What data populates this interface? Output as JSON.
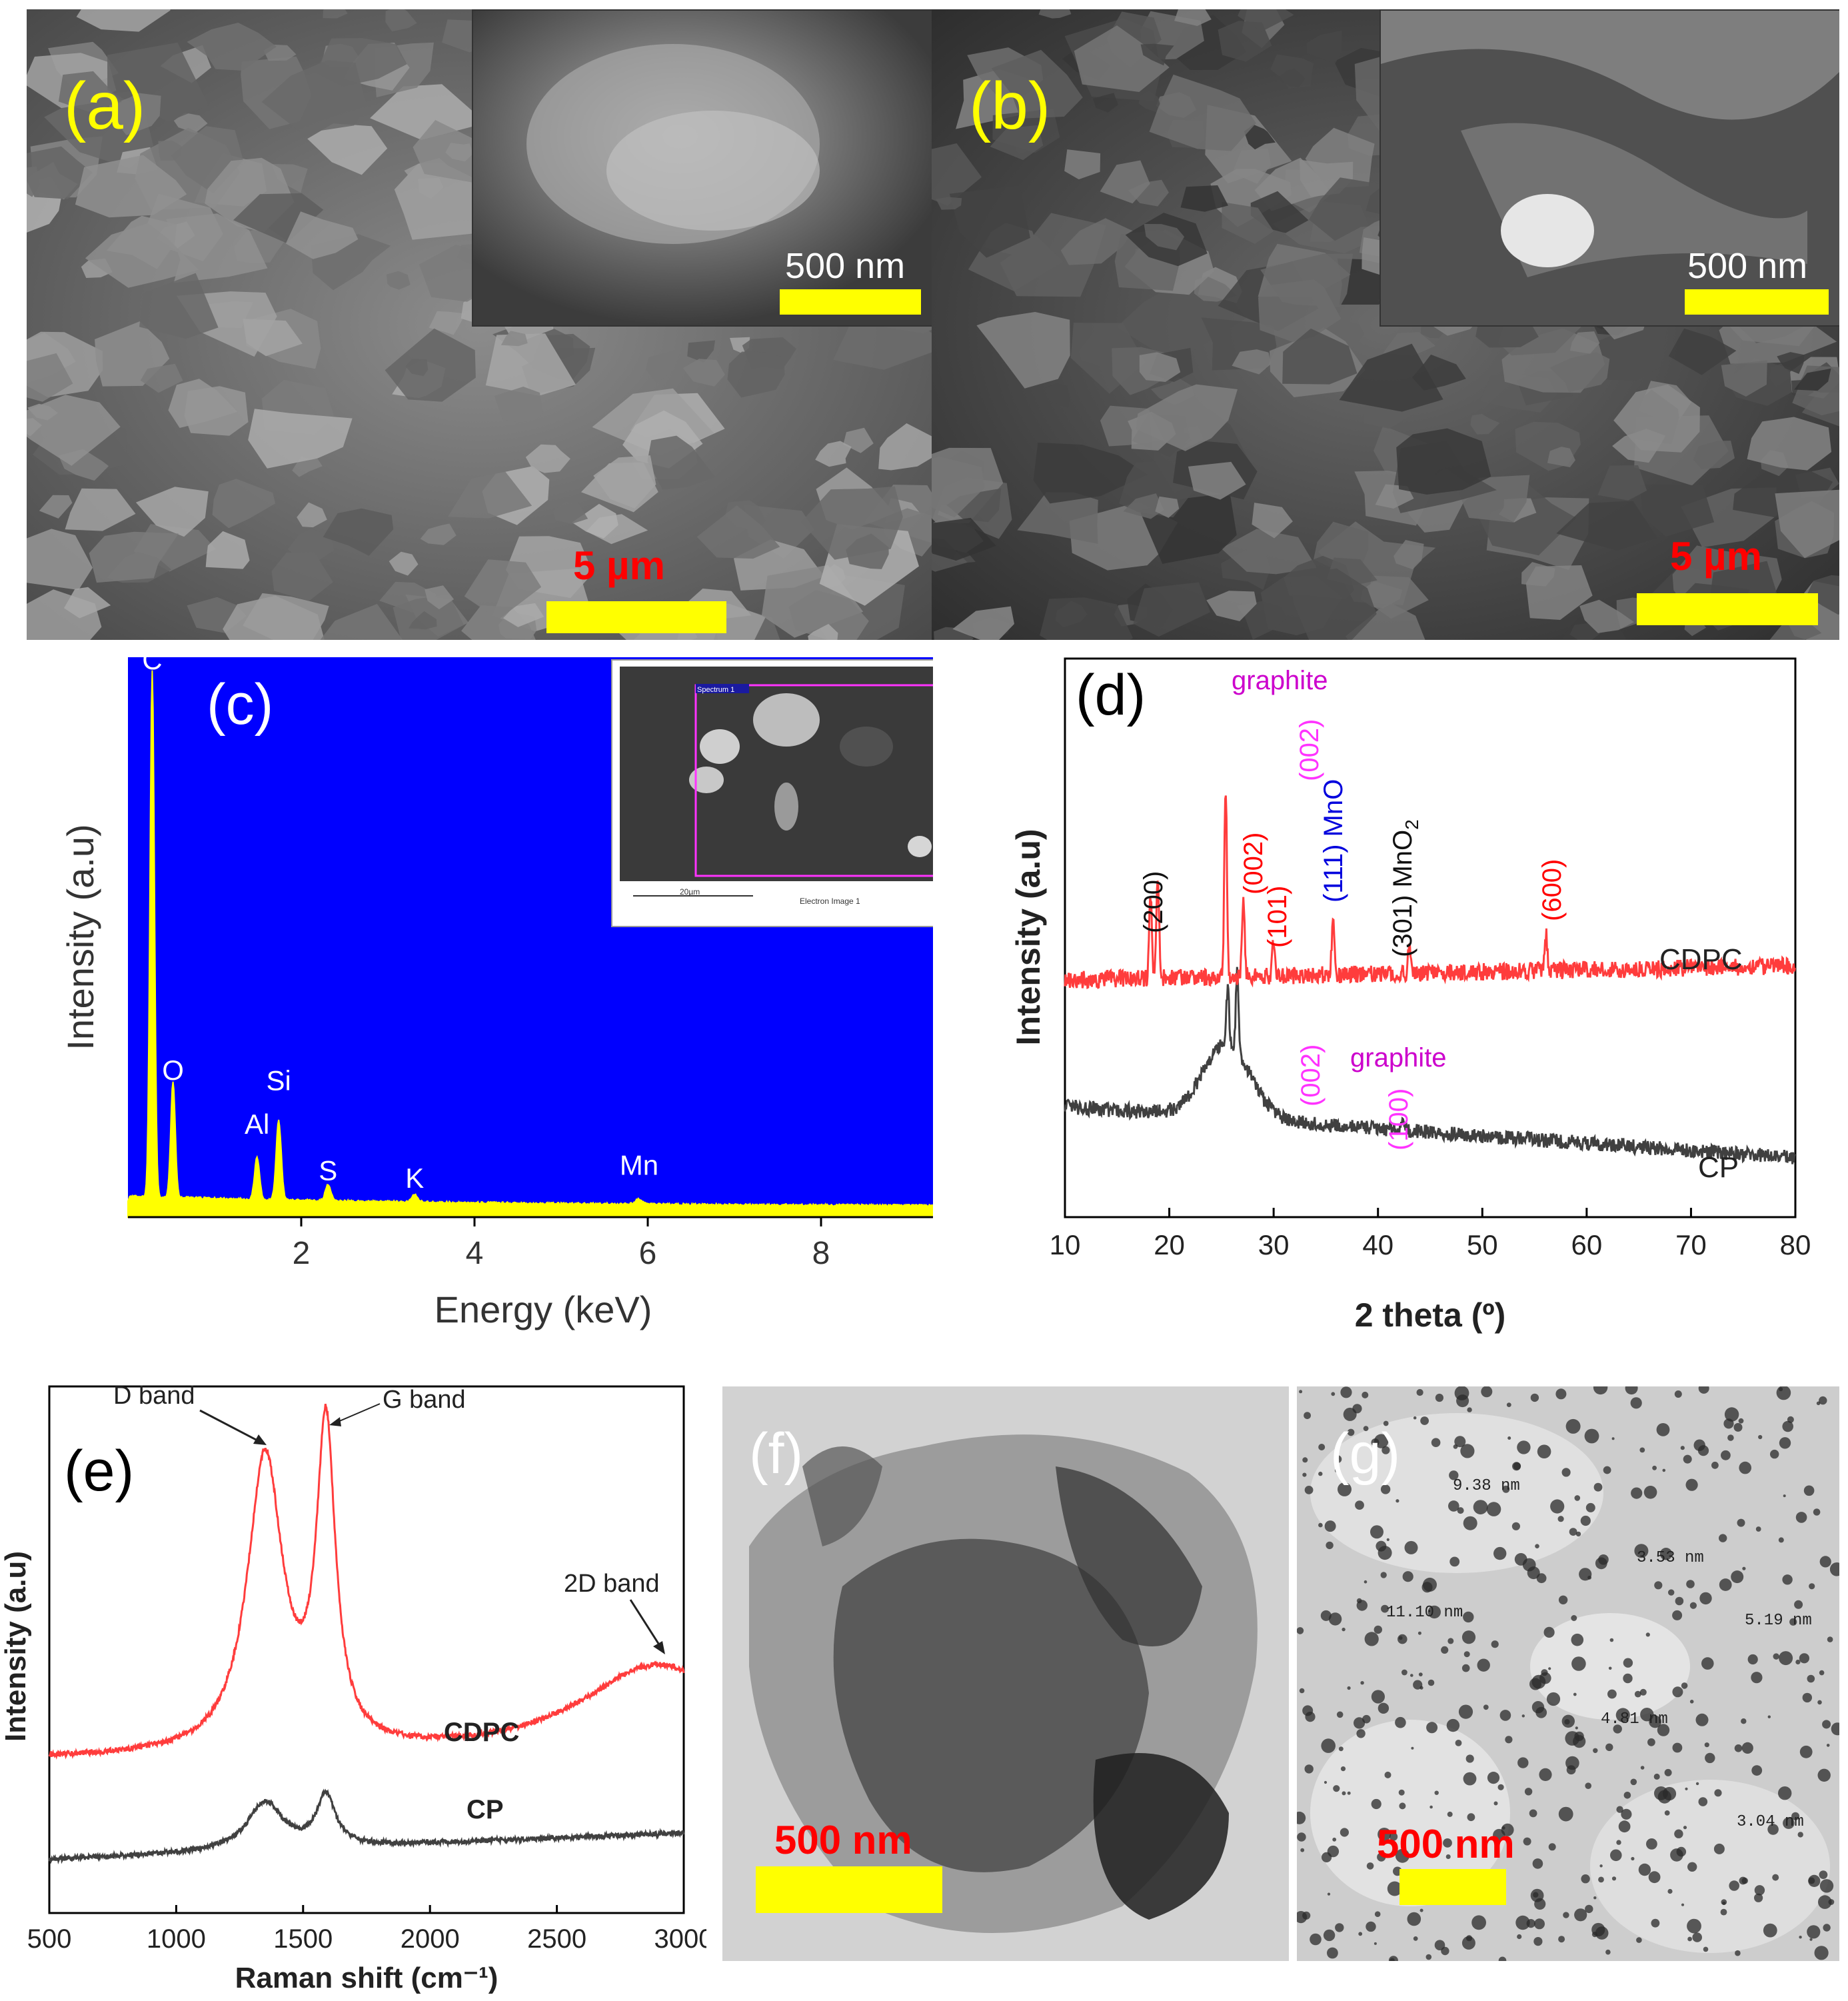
{
  "panel_a": {
    "label": "(a)",
    "inset_scale": "500 nm",
    "main_scale": "5 µm"
  },
  "panel_b": {
    "label": "(b)",
    "inset_scale": "500 nm",
    "main_scale": "5 µm"
  },
  "panel_c": {
    "label": "(c)",
    "inset_title": "Spectrum 1",
    "inset_scale": "20µm",
    "inset_caption": "Electron Image 1"
  },
  "panel_d": {
    "label": "(d)",
    "annotations": {
      "graphite_top": "graphite",
      "peak_002_top": "(002)",
      "peak_200": "(200)",
      "peak_002_red": "(002)",
      "peak_101": "(101)",
      "peak_111_mno": "(111) MnO",
      "peak_301_mno2": "(301) MnO",
      "sub_2": "2",
      "peak_600": "(600)",
      "graphite_bottom": "graphite",
      "peak_002_bottom": "(002)",
      "peak_100": "(100)"
    }
  },
  "panel_e": {
    "label": "(e)",
    "annotations": {
      "d_band": "D band",
      "g_band": "G band",
      "band_2d": "2D band"
    }
  },
  "panel_f": {
    "label": "(f)",
    "scale": "500 nm"
  },
  "panel_g": {
    "label": "(g)",
    "scale": "500 nm",
    "measurements": [
      "9.38 nm",
      "3.53 nm",
      "11.10 nm",
      "5.19 nm",
      "4.81 nm",
      "3.04 nm"
    ]
  },
  "chart_data": [
    {
      "panel": "c",
      "type": "area",
      "xlabel": "Energy (keV)",
      "ylabel": "Intensity (a.u)",
      "xlim": [
        0,
        10
      ],
      "xticks": [
        2,
        4,
        6,
        8,
        10
      ],
      "background_color": "#0000ff",
      "fill_color": "#ffff00",
      "peaks": [
        {
          "element": "C",
          "energy": 0.28,
          "relative_intensity": 1.0
        },
        {
          "element": "O",
          "energy": 0.52,
          "relative_intensity": 0.22
        },
        {
          "element": "Al",
          "energy": 1.49,
          "relative_intensity": 0.08
        },
        {
          "element": "Si",
          "energy": 1.74,
          "relative_intensity": 0.15
        },
        {
          "element": "S",
          "energy": 2.31,
          "relative_intensity": 0.03
        },
        {
          "element": "K",
          "energy": 3.31,
          "relative_intensity": 0.015
        },
        {
          "element": "Mn",
          "energy": 5.9,
          "relative_intensity": 0.01
        }
      ]
    },
    {
      "panel": "d",
      "type": "line",
      "xlabel": "2 theta (º)",
      "ylabel": "Intensity (a.u)",
      "xlim": [
        10,
        80
      ],
      "xticks": [
        10,
        20,
        30,
        40,
        50,
        60,
        70,
        80
      ],
      "series": [
        {
          "name": "CDPC",
          "color": "#ff3c3c",
          "peaks": [
            {
              "two_theta": 18.2,
              "relative_height": 0.45
            },
            {
              "two_theta": 18.9,
              "relative_height": 0.55
            },
            {
              "two_theta": 25.4,
              "relative_height": 1.0
            },
            {
              "two_theta": 27.1,
              "relative_height": 0.38
            },
            {
              "two_theta": 30.0,
              "relative_height": 0.2
            },
            {
              "two_theta": 35.7,
              "relative_height": 0.32
            },
            {
              "two_theta": 43.0,
              "relative_height": 0.12
            },
            {
              "two_theta": 56.1,
              "relative_height": 0.2
            }
          ]
        },
        {
          "name": "CP",
          "color": "#404040",
          "peaks": [
            {
              "two_theta": 25.6,
              "relative_height": 0.55
            },
            {
              "two_theta": 26.5,
              "relative_height": 0.75
            },
            {
              "two_theta": 42.5,
              "relative_height": 0.1
            }
          ]
        }
      ]
    },
    {
      "panel": "e",
      "type": "line",
      "xlabel": "Raman shift (cm⁻¹)",
      "ylabel": "Intensity (a.u)",
      "xlim": [
        500,
        3000
      ],
      "xticks": [
        500,
        1000,
        1500,
        2000,
        2500,
        3000
      ],
      "series": [
        {
          "name": "CDPC",
          "color": "#ff3c3c",
          "bands": [
            {
              "band": "D",
              "shift": 1350,
              "relative_height": 0.94
            },
            {
              "band": "G",
              "shift": 1590,
              "relative_height": 1.0
            },
            {
              "band": "2D",
              "shift": 2900,
              "relative_height": 0.3
            }
          ]
        },
        {
          "name": "CP",
          "color": "#404040",
          "bands": [
            {
              "band": "D",
              "shift": 1350,
              "relative_height": 0.3
            },
            {
              "band": "G",
              "shift": 1590,
              "relative_height": 0.32
            }
          ]
        }
      ]
    }
  ]
}
